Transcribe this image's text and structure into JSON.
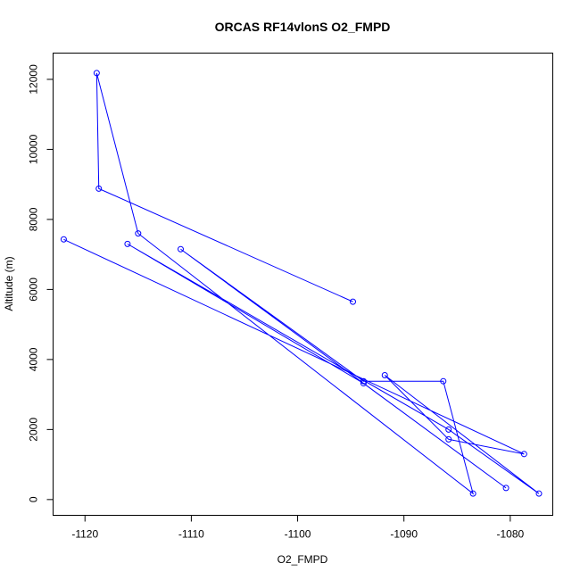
{
  "chart_data": {
    "type": "line",
    "title": "ORCAS RF14vlonS O2_FMPD",
    "xlabel": "O2_FMPD",
    "ylabel": "Altitude (m)",
    "xlim": [
      -1123,
      -1076
    ],
    "ylim": [
      -450,
      12750
    ],
    "xticks": [
      -1120,
      -1110,
      -1100,
      -1090,
      -1080
    ],
    "yticks": [
      0,
      2000,
      4000,
      6000,
      8000,
      10000,
      12000
    ],
    "grid": false,
    "series": [
      {
        "color": "#0000ff",
        "marker": "open-circle",
        "points": [
          {
            "x": -1094.8,
            "y": 5650
          },
          {
            "x": -1118.7,
            "y": 8880
          },
          {
            "x": -1118.9,
            "y": 12180
          },
          {
            "x": -1115.0,
            "y": 7600
          },
          {
            "x": -1083.5,
            "y": 170
          },
          {
            "x": -1086.3,
            "y": 3380
          },
          {
            "x": -1093.8,
            "y": 3380
          },
          {
            "x": -1111.0,
            "y": 7150
          },
          {
            "x": -1080.4,
            "y": 330
          },
          {
            "x": -1093.8,
            "y": 3320
          },
          {
            "x": -1116.0,
            "y": 7300
          },
          {
            "x": -1085.8,
            "y": 2000
          },
          {
            "x": -1077.3,
            "y": 170
          },
          {
            "x": -1091.8,
            "y": 3550
          },
          {
            "x": -1085.8,
            "y": 1720
          },
          {
            "x": -1078.7,
            "y": 1300
          },
          {
            "x": -1122.0,
            "y": 7430
          }
        ]
      }
    ]
  }
}
